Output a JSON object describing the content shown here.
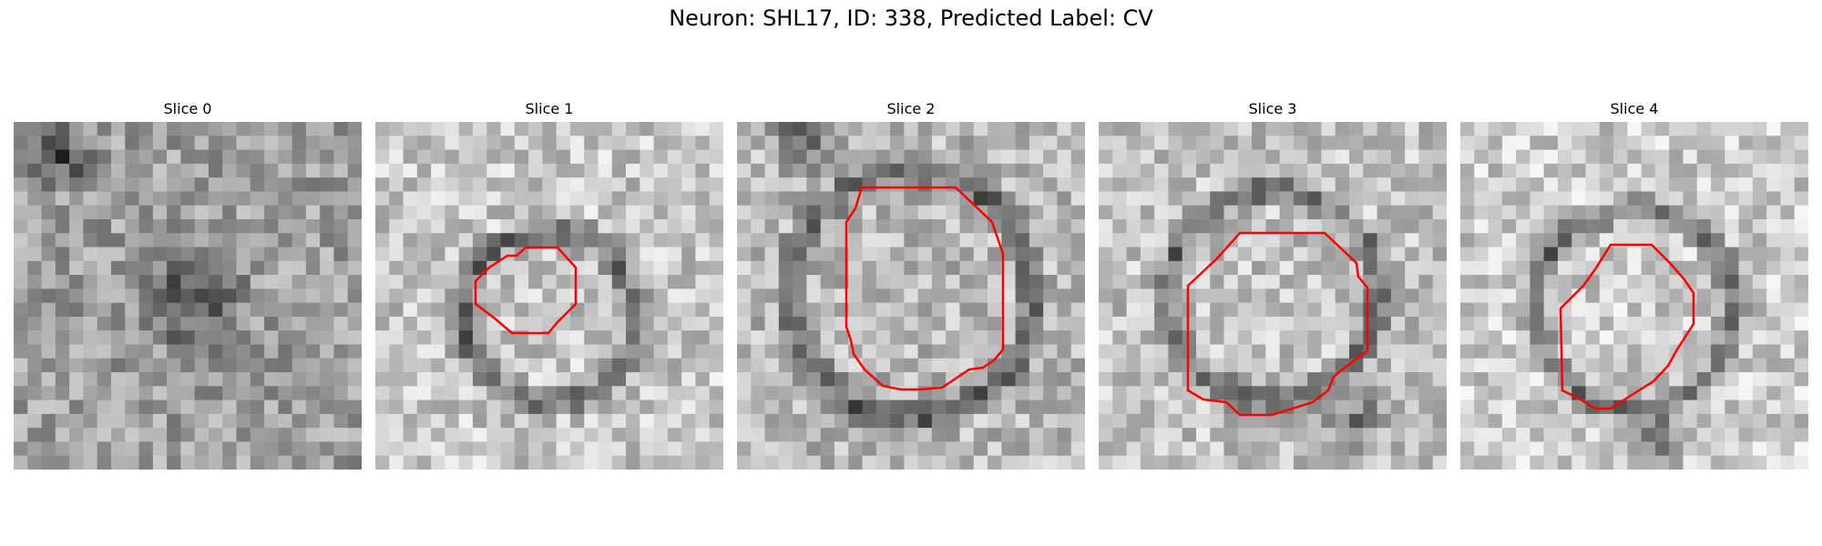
{
  "figure": {
    "title": "Neuron: SHL17, ID: 338, Predicted Label: CV"
  },
  "panels": [
    {
      "title": "Slice 0",
      "has_contour": false
    },
    {
      "title": "Slice 1",
      "has_contour": true
    },
    {
      "title": "Slice 2",
      "has_contour": true
    },
    {
      "title": "Slice 3",
      "has_contour": true
    },
    {
      "title": "Slice 4",
      "has_contour": true
    }
  ],
  "colors": {
    "contour": "#ff0000",
    "background": "#ffffff"
  }
}
